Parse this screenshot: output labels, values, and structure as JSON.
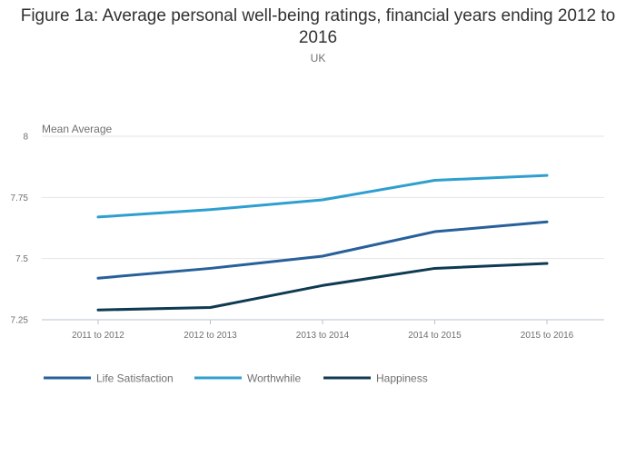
{
  "chart_data": {
    "type": "line",
    "title": "Figure 1a: Average personal well-being ratings, financial years ending 2012 to 2016",
    "subtitle": "UK",
    "ylabel": "Mean Average",
    "categories": [
      "2011 to 2012",
      "2012 to 2013",
      "2013 to 2014",
      "2014 to 2015",
      "2015 to 2016"
    ],
    "yticks": [
      "7.25",
      "7.5",
      "7.75",
      "8"
    ],
    "ylim": [
      7.25,
      8
    ],
    "grid": true,
    "legend_position": "bottom-left",
    "series": [
      {
        "name": "Life Satisfaction",
        "color": "#27609a",
        "values": [
          7.42,
          7.46,
          7.51,
          7.61,
          7.65
        ]
      },
      {
        "name": "Worthwhile",
        "color": "#2e9fcf",
        "values": [
          7.67,
          7.7,
          7.74,
          7.82,
          7.84
        ]
      },
      {
        "name": "Happiness",
        "color": "#0e3a52",
        "values": [
          7.29,
          7.3,
          7.39,
          7.46,
          7.48
        ]
      }
    ]
  }
}
